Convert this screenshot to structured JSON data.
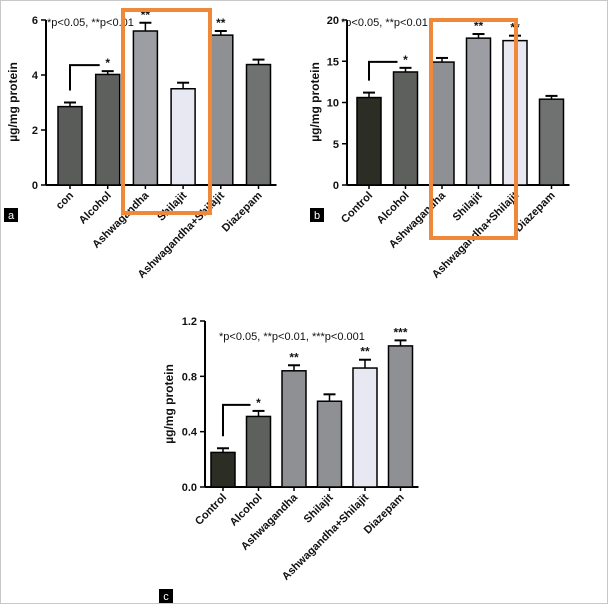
{
  "figure": {
    "panel_bg": "#000000",
    "highlight_color": "#f0883a"
  },
  "chart_data": [
    {
      "panel": "a",
      "type": "bar",
      "ylabel": "µg/mg protein",
      "ylim": [
        0,
        6
      ],
      "yticks": [
        0,
        2,
        4,
        6
      ],
      "ytick_labels": [
        "0",
        "2",
        "4",
        "6"
      ],
      "annotation": "*p<0.05, **p<0.01",
      "categories": [
        "con",
        "Alcohol",
        "Ashwagandha",
        "Shilajit",
        "Ashwagandha+Shilajit",
        "Diazepam"
      ],
      "values": [
        2.85,
        4.02,
        5.6,
        3.5,
        5.45,
        4.38
      ],
      "errors": [
        0.15,
        0.12,
        0.3,
        0.22,
        0.15,
        0.18
      ],
      "significance": [
        "",
        "*",
        "**",
        "",
        "**",
        ""
      ],
      "bar_colors": [
        "#5a5c5a",
        "#5e605e",
        "#9c9ea4",
        "#e8e8f2",
        "#8e9094",
        "#707272"
      ],
      "comparison_bracket": [
        0,
        1
      ],
      "highlighted_categories": [
        2,
        3
      ]
    },
    {
      "panel": "b",
      "type": "bar",
      "ylabel": "µg/mg protein",
      "ylim": [
        0,
        20
      ],
      "yticks": [
        0,
        5,
        10,
        15,
        20
      ],
      "ytick_labels": [
        "0",
        "5",
        "10",
        "15",
        "20"
      ],
      "annotation": "*p<0.05, **p<0.01",
      "categories": [
        "Control",
        "Alcohol",
        "Ashwagandha",
        "Shilajit",
        "Ashwagandha+Shilajit",
        "Diazepam"
      ],
      "values": [
        10.6,
        13.7,
        14.9,
        17.8,
        17.5,
        10.4
      ],
      "errors": [
        0.6,
        0.5,
        0.5,
        0.5,
        0.6,
        0.4
      ],
      "significance": [
        "",
        "*",
        "",
        "**",
        "**",
        ""
      ],
      "bar_colors": [
        "#2c2e26",
        "#5e605e",
        "#8e9094",
        "#9c9ea4",
        "#e8e8f2",
        "#707272"
      ],
      "comparison_bracket": [
        0,
        1
      ],
      "highlighted_categories": [
        2,
        3
      ]
    },
    {
      "panel": "c",
      "type": "bar",
      "ylabel": "µg/mg protein",
      "ylim": [
        0,
        1.2
      ],
      "yticks": [
        0,
        0.4,
        0.8,
        1.2
      ],
      "ytick_labels": [
        "0.0",
        "0.4",
        "0.8",
        "1.2"
      ],
      "annotation": "*p<0.05, **p<0.01, ***p<0.001",
      "categories": [
        "Control",
        "Alcohol",
        "Ashwagandha",
        "Shilajit",
        "Ashwagandha+Shilajit",
        "Diazepam"
      ],
      "values": [
        0.25,
        0.51,
        0.84,
        0.62,
        0.86,
        1.02
      ],
      "errors": [
        0.03,
        0.04,
        0.04,
        0.05,
        0.06,
        0.04
      ],
      "significance": [
        "",
        "*",
        "**",
        "",
        "**",
        "***"
      ],
      "bar_colors": [
        "#2c2e26",
        "#5e605e",
        "#8e9094",
        "#8e9094",
        "#e8e8f2",
        "#8e9094"
      ],
      "comparison_bracket": [
        0,
        1
      ],
      "highlighted_categories": []
    }
  ]
}
